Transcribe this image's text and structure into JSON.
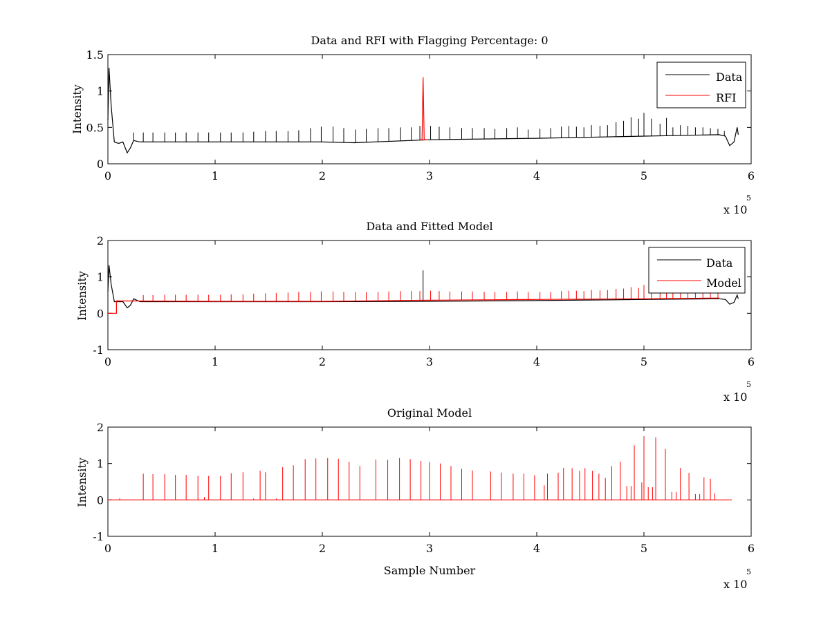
{
  "colors": {
    "data": "#000000",
    "red": "#ff0000",
    "axes": "#000000",
    "background": "#ffffff"
  },
  "x_multiplier": {
    "base": "x 10",
    "exponent": "5"
  },
  "chart_data": [
    {
      "type": "line",
      "title": "Data and RFI with Flagging Percentage: 0",
      "xlabel": "",
      "ylabel": "Intensity",
      "xlim": [
        0,
        6
      ],
      "ylim": [
        0,
        1.5
      ],
      "xticks": [
        "0",
        "1",
        "2",
        "3",
        "4",
        "5",
        "6"
      ],
      "yticks": [
        "0",
        "0.5",
        "1",
        "1.5"
      ],
      "legend_position": "top-right",
      "series": [
        {
          "name": "Data",
          "color": "#000000",
          "baseline": [
            [
              0,
              0.6
            ],
            [
              0.01,
              1.32
            ],
            [
              0.03,
              0.8
            ],
            [
              0.06,
              0.3
            ],
            [
              0.1,
              0.28
            ],
            [
              0.14,
              0.3
            ],
            [
              0.18,
              0.15
            ],
            [
              0.21,
              0.22
            ],
            [
              0.24,
              0.32
            ],
            [
              0.3,
              0.3
            ],
            [
              1.0,
              0.3
            ],
            [
              2.0,
              0.3
            ],
            [
              2.3,
              0.29
            ],
            [
              3.0,
              0.33
            ],
            [
              4.0,
              0.35
            ],
            [
              5.0,
              0.38
            ],
            [
              5.7,
              0.4
            ],
            [
              5.76,
              0.38
            ],
            [
              5.8,
              0.25
            ],
            [
              5.84,
              0.3
            ],
            [
              5.87,
              0.5
            ],
            [
              5.88,
              0.4
            ]
          ],
          "spikes": [
            [
              0.24,
              0.43
            ],
            [
              0.33,
              0.43
            ],
            [
              0.42,
              0.43
            ],
            [
              0.53,
              0.43
            ],
            [
              0.63,
              0.43
            ],
            [
              0.73,
              0.43
            ],
            [
              0.84,
              0.43
            ],
            [
              0.94,
              0.43
            ],
            [
              1.05,
              0.43
            ],
            [
              1.15,
              0.43
            ],
            [
              1.26,
              0.43
            ],
            [
              1.36,
              0.44
            ],
            [
              1.47,
              0.45
            ],
            [
              1.57,
              0.45
            ],
            [
              1.68,
              0.45
            ],
            [
              1.78,
              0.46
            ],
            [
              1.89,
              0.49
            ],
            [
              1.99,
              0.51
            ],
            [
              2.1,
              0.51
            ],
            [
              2.2,
              0.49
            ],
            [
              2.31,
              0.47
            ],
            [
              2.41,
              0.48
            ],
            [
              2.52,
              0.49
            ],
            [
              2.62,
              0.49
            ],
            [
              2.73,
              0.5
            ],
            [
              2.83,
              0.5
            ],
            [
              2.91,
              0.52
            ],
            [
              3.01,
              0.52
            ],
            [
              3.09,
              0.51
            ],
            [
              3.19,
              0.5
            ],
            [
              3.3,
              0.49
            ],
            [
              3.4,
              0.49
            ],
            [
              3.51,
              0.49
            ],
            [
              3.61,
              0.48
            ],
            [
              3.72,
              0.49
            ],
            [
              3.82,
              0.5
            ],
            [
              3.92,
              0.47
            ],
            [
              4.03,
              0.48
            ],
            [
              4.13,
              0.49
            ],
            [
              4.23,
              0.51
            ],
            [
              4.3,
              0.52
            ],
            [
              4.37,
              0.51
            ],
            [
              4.44,
              0.5
            ],
            [
              4.51,
              0.53
            ],
            [
              4.59,
              0.52
            ],
            [
              4.66,
              0.53
            ],
            [
              4.74,
              0.57
            ],
            [
              4.81,
              0.59
            ],
            [
              4.88,
              0.64
            ],
            [
              4.95,
              0.62
            ],
            [
              5.0,
              0.7
            ],
            [
              5.07,
              0.62
            ],
            [
              5.15,
              0.55
            ],
            [
              5.21,
              0.63
            ],
            [
              5.27,
              0.5
            ],
            [
              5.34,
              0.53
            ],
            [
              5.41,
              0.52
            ],
            [
              5.48,
              0.5
            ],
            [
              5.55,
              0.5
            ],
            [
              5.62,
              0.49
            ],
            [
              5.69,
              0.48
            ],
            [
              5.75,
              0.45
            ]
          ]
        },
        {
          "name": "RFI",
          "color": "#ff0000",
          "x": [
            2.91,
            2.93,
            2.94,
            2.95,
            2.96,
            2.98
          ],
          "y": [
            0.33,
            0.33,
            1.19,
            0.33,
            0.33,
            0.33
          ]
        }
      ]
    },
    {
      "type": "line",
      "title": "Data and Fitted Model",
      "xlabel": "",
      "ylabel": "Intensity",
      "xlim": [
        0,
        6
      ],
      "ylim": [
        -1,
        2
      ],
      "xticks": [
        "0",
        "1",
        "2",
        "3",
        "4",
        "5",
        "6"
      ],
      "yticks": [
        "-1",
        "0",
        "1",
        "2"
      ],
      "legend_position": "top-right",
      "series": [
        {
          "name": "Data",
          "color": "#000000",
          "baseline": [
            [
              0,
              0.6
            ],
            [
              0.01,
              1.32
            ],
            [
              0.03,
              0.8
            ],
            [
              0.06,
              0.32
            ],
            [
              0.1,
              0.32
            ],
            [
              0.14,
              0.32
            ],
            [
              0.18,
              0.15
            ],
            [
              0.21,
              0.22
            ],
            [
              0.24,
              0.4
            ],
            [
              0.3,
              0.32
            ],
            [
              1.0,
              0.32
            ],
            [
              2.0,
              0.32
            ],
            [
              3.0,
              0.33
            ],
            [
              4.0,
              0.35
            ],
            [
              5.0,
              0.38
            ],
            [
              5.7,
              0.4
            ],
            [
              5.76,
              0.38
            ],
            [
              5.8,
              0.25
            ],
            [
              5.84,
              0.3
            ],
            [
              5.87,
              0.5
            ],
            [
              5.88,
              0.4
            ]
          ],
          "spikes": [
            [
              2.94,
              1.18
            ]
          ]
        },
        {
          "name": "Model",
          "color": "#ff0000",
          "baseline": [
            [
              0,
              0.0
            ],
            [
              0.08,
              0.0
            ],
            [
              0.08,
              0.34
            ],
            [
              1.0,
              0.33
            ],
            [
              2.0,
              0.33
            ],
            [
              3.0,
              0.36
            ],
            [
              4.0,
              0.38
            ],
            [
              5.0,
              0.4
            ],
            [
              5.7,
              0.42
            ]
          ],
          "spikes": [
            [
              0.33,
              0.5
            ],
            [
              0.42,
              0.5
            ],
            [
              0.53,
              0.51
            ],
            [
              0.63,
              0.51
            ],
            [
              0.73,
              0.51
            ],
            [
              0.84,
              0.51
            ],
            [
              0.94,
              0.51
            ],
            [
              1.05,
              0.51
            ],
            [
              1.15,
              0.52
            ],
            [
              1.26,
              0.52
            ],
            [
              1.36,
              0.54
            ],
            [
              1.47,
              0.55
            ],
            [
              1.57,
              0.56
            ],
            [
              1.68,
              0.57
            ],
            [
              1.78,
              0.59
            ],
            [
              1.89,
              0.59
            ],
            [
              1.99,
              0.6
            ],
            [
              2.1,
              0.6
            ],
            [
              2.2,
              0.59
            ],
            [
              2.31,
              0.58
            ],
            [
              2.41,
              0.58
            ],
            [
              2.52,
              0.59
            ],
            [
              2.62,
              0.6
            ],
            [
              2.73,
              0.61
            ],
            [
              2.83,
              0.61
            ],
            [
              2.91,
              0.61
            ],
            [
              3.01,
              0.62
            ],
            [
              3.09,
              0.61
            ],
            [
              3.19,
              0.6
            ],
            [
              3.3,
              0.6
            ],
            [
              3.4,
              0.6
            ],
            [
              3.51,
              0.59
            ],
            [
              3.61,
              0.59
            ],
            [
              3.72,
              0.59
            ],
            [
              3.82,
              0.6
            ],
            [
              3.92,
              0.58
            ],
            [
              4.03,
              0.59
            ],
            [
              4.13,
              0.59
            ],
            [
              4.23,
              0.61
            ],
            [
              4.3,
              0.62
            ],
            [
              4.37,
              0.62
            ],
            [
              4.44,
              0.61
            ],
            [
              4.51,
              0.64
            ],
            [
              4.59,
              0.63
            ],
            [
              4.66,
              0.64
            ],
            [
              4.74,
              0.67
            ],
            [
              4.81,
              0.68
            ],
            [
              4.88,
              0.72
            ],
            [
              4.95,
              0.7
            ],
            [
              5.0,
              0.78
            ],
            [
              5.07,
              0.7
            ],
            [
              5.15,
              0.65
            ],
            [
              5.21,
              0.72
            ],
            [
              5.27,
              0.6
            ],
            [
              5.34,
              0.62
            ],
            [
              5.41,
              0.61
            ],
            [
              5.48,
              0.59
            ],
            [
              5.55,
              0.59
            ],
            [
              5.62,
              0.58
            ],
            [
              5.69,
              0.57
            ]
          ]
        }
      ]
    },
    {
      "type": "line",
      "title": "Original Model",
      "xlabel": "Sample Number",
      "ylabel": "Intensity",
      "xlim": [
        0,
        6
      ],
      "ylim": [
        -1,
        2
      ],
      "xticks": [
        "0",
        "1",
        "2",
        "3",
        "4",
        "5",
        "6"
      ],
      "yticks": [
        "-1",
        "0",
        "1",
        "2"
      ],
      "series": [
        {
          "color": "#ff0000",
          "baseline": [
            [
              0,
              0
            ],
            [
              5.82,
              0
            ]
          ],
          "spikes": [
            [
              0.11,
              0.04
            ],
            [
              0.33,
              0.72
            ],
            [
              0.42,
              0.71
            ],
            [
              0.53,
              0.71
            ],
            [
              0.63,
              0.69
            ],
            [
              0.73,
              0.69
            ],
            [
              0.84,
              0.66
            ],
            [
              0.9,
              0.08
            ],
            [
              0.94,
              0.66
            ],
            [
              1.05,
              0.66
            ],
            [
              1.15,
              0.73
            ],
            [
              1.26,
              0.76
            ],
            [
              1.36,
              0.04
            ],
            [
              1.42,
              0.8
            ],
            [
              1.47,
              0.76
            ],
            [
              1.57,
              0.04
            ],
            [
              1.63,
              0.9
            ],
            [
              1.73,
              0.95
            ],
            [
              1.84,
              1.12
            ],
            [
              1.94,
              1.14
            ],
            [
              2.05,
              1.15
            ],
            [
              2.15,
              1.13
            ],
            [
              2.25,
              1.05
            ],
            [
              2.35,
              0.93
            ],
            [
              2.5,
              1.11
            ],
            [
              2.61,
              1.1
            ],
            [
              2.72,
              1.15
            ],
            [
              2.82,
              1.12
            ],
            [
              2.92,
              1.07
            ],
            [
              3.0,
              1.04
            ],
            [
              3.1,
              1.0
            ],
            [
              3.2,
              0.93
            ],
            [
              3.3,
              0.86
            ],
            [
              3.4,
              0.81
            ],
            [
              3.57,
              0.78
            ],
            [
              3.67,
              0.75
            ],
            [
              3.78,
              0.72
            ],
            [
              3.88,
              0.72
            ],
            [
              3.98,
              0.68
            ],
            [
              4.07,
              0.4
            ],
            [
              4.1,
              0.72
            ],
            [
              4.2,
              0.75
            ],
            [
              4.25,
              0.88
            ],
            [
              4.33,
              0.87
            ],
            [
              4.4,
              0.8
            ],
            [
              4.45,
              0.87
            ],
            [
              4.52,
              0.8
            ],
            [
              4.58,
              0.72
            ],
            [
              4.64,
              0.6
            ],
            [
              4.7,
              0.93
            ],
            [
              4.78,
              1.05
            ],
            [
              4.84,
              0.38
            ],
            [
              4.88,
              0.38
            ],
            [
              4.91,
              1.5
            ],
            [
              4.98,
              0.48
            ],
            [
              5.0,
              1.75
            ],
            [
              5.04,
              0.35
            ],
            [
              5.08,
              0.35
            ],
            [
              5.11,
              1.72
            ],
            [
              5.2,
              1.4
            ],
            [
              5.26,
              0.22
            ],
            [
              5.3,
              0.22
            ],
            [
              5.34,
              0.88
            ],
            [
              5.42,
              0.74
            ],
            [
              5.48,
              0.16
            ],
            [
              5.52,
              0.16
            ],
            [
              5.56,
              0.62
            ],
            [
              5.62,
              0.58
            ],
            [
              5.66,
              0.18
            ]
          ]
        }
      ]
    }
  ]
}
